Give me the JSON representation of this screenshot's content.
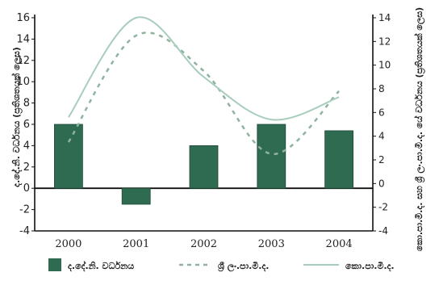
{
  "chart_data": {
    "type": "bar",
    "categories": [
      "2000",
      "2001",
      "2002",
      "2003",
      "2004"
    ],
    "series": [
      {
        "name": "ද.දේ.නි. වර්ධනය",
        "kind": "bar",
        "axis": "left",
        "color": "#2f6b50",
        "values": [
          6.0,
          -1.5,
          4.0,
          6.0,
          5.4
        ]
      },
      {
        "name": "ශ්‍රී ලං.පා.මි.ද.",
        "kind": "line",
        "style": "dashed",
        "axis": "right",
        "color": "#8fb39e",
        "values": [
          3.5,
          12.5,
          9.5,
          2.5,
          7.8
        ]
      },
      {
        "name": "කො.පා.මි.ද.",
        "kind": "line",
        "style": "solid",
        "axis": "right",
        "color": "#a8cdbc",
        "values": [
          5.6,
          14.0,
          9.0,
          5.4,
          7.3
        ]
      }
    ],
    "ylabel_left": "ද.දේ.නි. වර්ධනය (ප්‍රතිශතයක් ලෙස)",
    "ylabel_right": "කො.පා.මි.ද. සහ ශ්‍රී ලං.පා.මි.ද. යේ වර්ධනය (ප්‍රතිශතයක් ලෙස)",
    "ylim_left": [
      -4,
      16
    ],
    "ylim_right": [
      -4,
      14
    ],
    "yticks_left": [
      "-4",
      "-2",
      "0",
      "2",
      "4",
      "6",
      "8",
      "10",
      "12",
      "14",
      "16"
    ],
    "yticks_right": [
      "-4",
      "-2",
      "0",
      "2",
      "4",
      "6",
      "8",
      "10",
      "12",
      "14"
    ],
    "grid": false,
    "legend_position": "bottom"
  }
}
